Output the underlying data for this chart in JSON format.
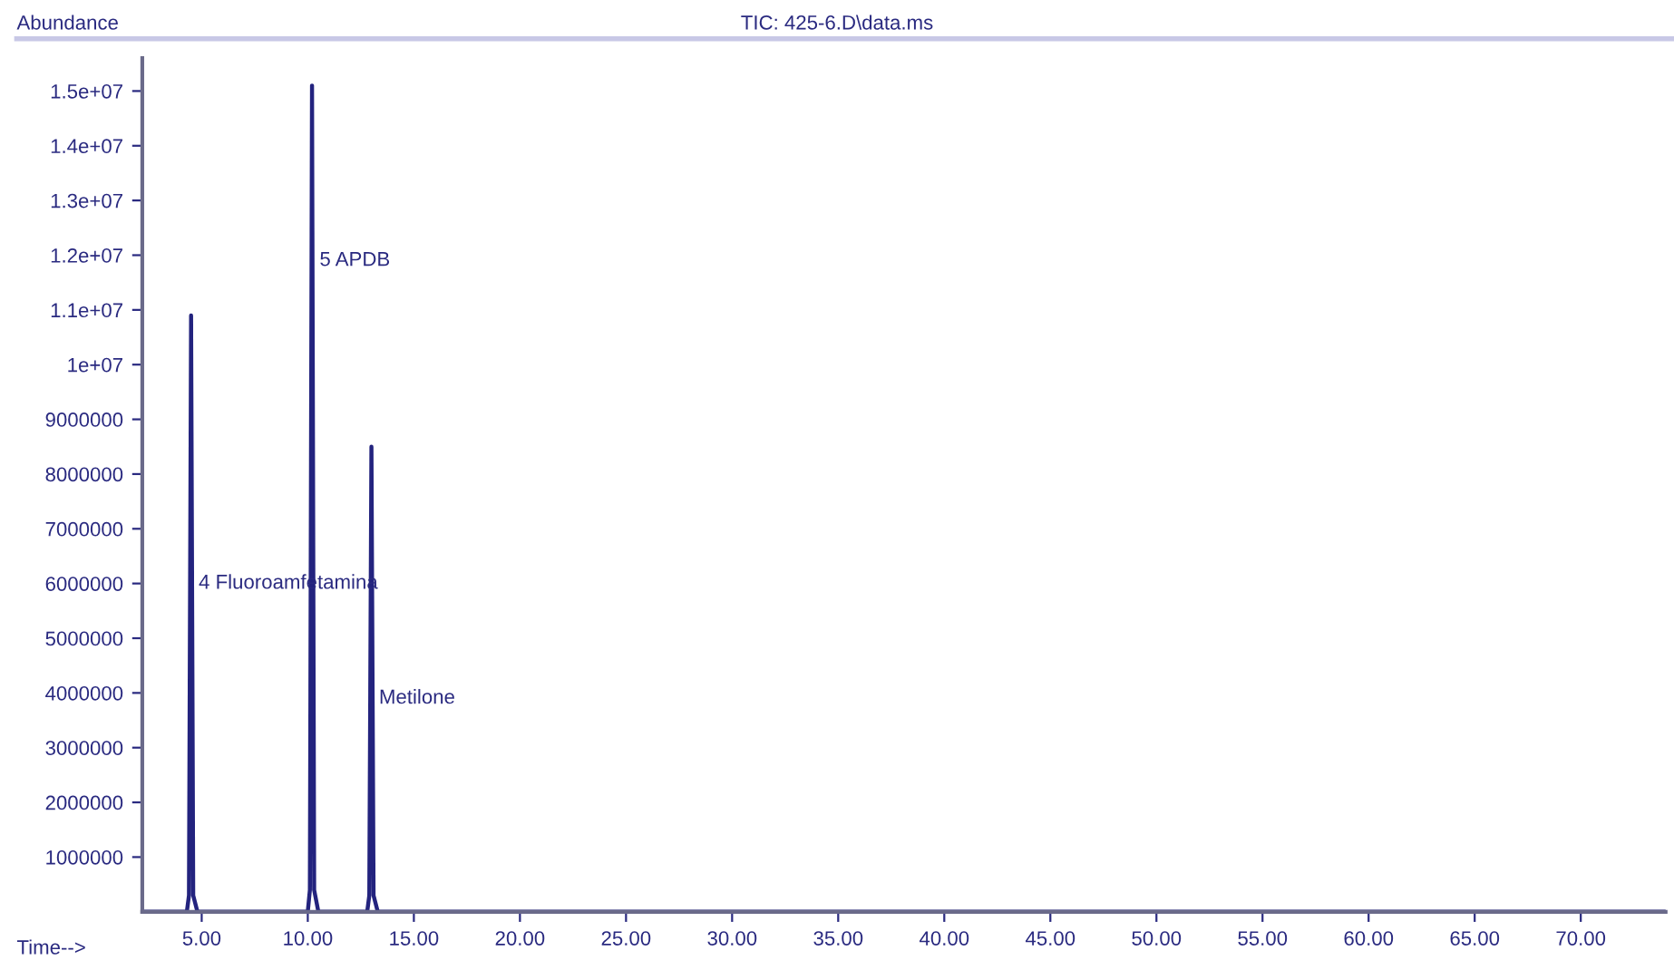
{
  "chart_data": {
    "type": "line",
    "title": "TIC: 425-6.D\\data.ms",
    "xlabel": "Time-->",
    "ylabel": "Abundance",
    "x": [
      2.2,
      4.3,
      4.4,
      4.5,
      4.6,
      4.8,
      8.0,
      10.0,
      10.1,
      10.2,
      10.3,
      10.5,
      12.8,
      12.9,
      13.0,
      13.1,
      13.3,
      20.0,
      45.0,
      74.0
    ],
    "series": [
      {
        "color": "#23237e",
        "values": [
          0,
          0,
          300000,
          10900000,
          300000,
          0,
          0,
          0,
          400000,
          15100000,
          400000,
          0,
          0,
          300000,
          8500000,
          300000,
          0,
          0,
          0,
          0
        ]
      }
    ],
    "xlim": [
      2.2,
      74
    ],
    "ylim": [
      0,
      15600000
    ],
    "xticks": [
      {
        "value": 5,
        "label": "5.00"
      },
      {
        "value": 10,
        "label": "10.00"
      },
      {
        "value": 15,
        "label": "15.00"
      },
      {
        "value": 20,
        "label": "20.00"
      },
      {
        "value": 25,
        "label": "25.00"
      },
      {
        "value": 30,
        "label": "30.00"
      },
      {
        "value": 35,
        "label": "35.00"
      },
      {
        "value": 40,
        "label": "40.00"
      },
      {
        "value": 45,
        "label": "45.00"
      },
      {
        "value": 50,
        "label": "50.00"
      },
      {
        "value": 55,
        "label": "55.00"
      },
      {
        "value": 60,
        "label": "60.00"
      },
      {
        "value": 65,
        "label": "65.00"
      },
      {
        "value": 70,
        "label": "70.00"
      }
    ],
    "yticks": [
      1000000,
      2000000,
      3000000,
      4000000,
      5000000,
      6000000,
      7000000,
      8000000,
      9000000,
      {
        "value": 10000000,
        "label": "1e+07"
      },
      {
        "value": 11000000,
        "label": "1.1e+07"
      },
      {
        "value": 12000000,
        "label": "1.2e+07"
      },
      {
        "value": 13000000,
        "label": "1.3e+07"
      },
      {
        "value": 14000000,
        "label": "1.4e+07"
      },
      {
        "value": 15000000,
        "label": "1.5e+07"
      }
    ],
    "annotations": [
      {
        "text": "4 Fluoroamfetamina",
        "x": 4.5,
        "y": 6000000
      },
      {
        "text": "5 APDB",
        "x": 10.2,
        "y": 11900000
      },
      {
        "text": "Metilone",
        "x": 13.0,
        "y": 3900000
      }
    ],
    "grid": false,
    "legend": false,
    "marker": "none",
    "line_style": "solid"
  }
}
